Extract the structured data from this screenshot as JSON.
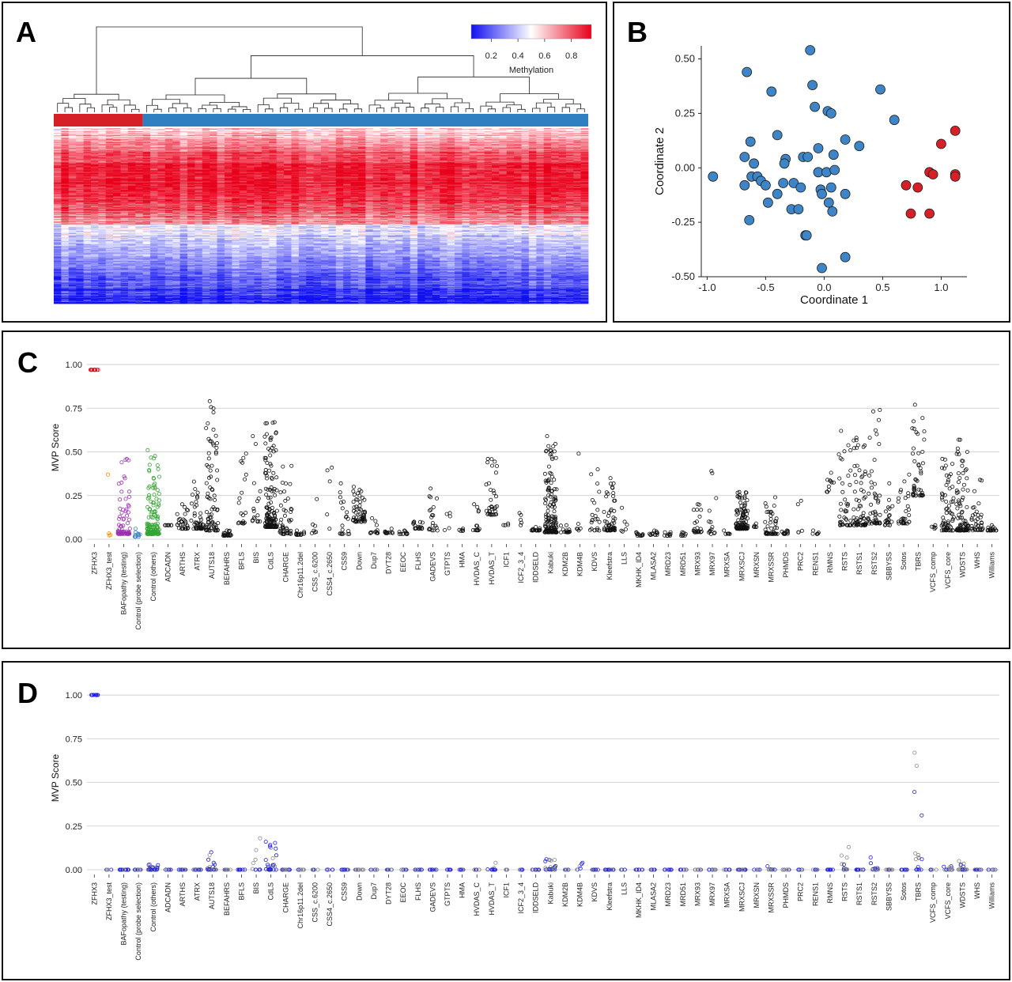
{
  "panels": {
    "a": {
      "letter": "A"
    },
    "b": {
      "letter": "B"
    },
    "c": {
      "letter": "C"
    },
    "d": {
      "letter": "D"
    }
  },
  "chart_data": [
    {
      "panel": "A",
      "type": "heatmap",
      "legend": {
        "title": "Methylation",
        "ticks": [
          0.2,
          0.4,
          0.6,
          0.8
        ],
        "range": [
          0.05,
          0.95
        ],
        "colors": [
          "#1010f0",
          "#ffffff",
          "#e8001a"
        ]
      },
      "groups": [
        {
          "color": "#d62027",
          "count": 12
        },
        {
          "color": "#2f7fc1",
          "count": 60
        }
      ],
      "rows": 220,
      "blocks": [
        {
          "from": 0.0,
          "to": 0.55,
          "mean": 0.72
        },
        {
          "from": 0.55,
          "to": 1.0,
          "mean": 0.18
        }
      ]
    },
    {
      "panel": "B",
      "type": "scatter",
      "xlabel": "Coordinate 1",
      "ylabel": "Coordinate 2",
      "xlim": [
        -1.05,
        1.22
      ],
      "ylim": [
        -0.5,
        0.56
      ],
      "xticks": [
        "-1.0",
        "-0.5",
        "0.0",
        "0.5",
        "1.0"
      ],
      "yticks": [
        "0.50",
        "0.25",
        "0.00",
        "-0.25",
        "-0.50"
      ],
      "series": [
        {
          "color": "#3d85c6",
          "points": [
            [
              -0.12,
              0.54
            ],
            [
              -0.66,
              0.44
            ],
            [
              -0.1,
              0.38
            ],
            [
              -0.45,
              0.35
            ],
            [
              0.48,
              0.36
            ],
            [
              -0.08,
              0.28
            ],
            [
              0.03,
              0.26
            ],
            [
              0.06,
              0.25
            ],
            [
              0.6,
              0.22
            ],
            [
              -0.63,
              0.12
            ],
            [
              -0.4,
              0.15
            ],
            [
              0.18,
              0.13
            ],
            [
              0.3,
              0.1
            ],
            [
              -0.68,
              0.05
            ],
            [
              -0.33,
              0.04
            ],
            [
              -0.18,
              0.05
            ],
            [
              -0.14,
              0.05
            ],
            [
              -0.05,
              0.09
            ],
            [
              0.08,
              0.06
            ],
            [
              -0.6,
              0.02
            ],
            [
              -0.34,
              0.02
            ],
            [
              -0.95,
              -0.04
            ],
            [
              -0.62,
              -0.04
            ],
            [
              -0.57,
              -0.04
            ],
            [
              -0.54,
              -0.06
            ],
            [
              -0.05,
              -0.02
            ],
            [
              0.02,
              -0.02
            ],
            [
              0.09,
              -0.01
            ],
            [
              -0.26,
              -0.07
            ],
            [
              -0.68,
              -0.08
            ],
            [
              -0.5,
              -0.08
            ],
            [
              -0.35,
              -0.07
            ],
            [
              -0.2,
              -0.09
            ],
            [
              -0.03,
              -0.1
            ],
            [
              0.06,
              -0.09
            ],
            [
              -0.4,
              -0.12
            ],
            [
              -0.02,
              -0.12
            ],
            [
              0.18,
              -0.12
            ],
            [
              -0.48,
              -0.16
            ],
            [
              -0.28,
              -0.19
            ],
            [
              -0.22,
              -0.19
            ],
            [
              0.04,
              -0.16
            ],
            [
              0.07,
              -0.2
            ],
            [
              -0.64,
              -0.24
            ],
            [
              -0.16,
              -0.31
            ],
            [
              -0.15,
              -0.31
            ],
            [
              0.18,
              -0.41
            ],
            [
              -0.02,
              -0.46
            ]
          ]
        },
        {
          "color": "#d62027",
          "points": [
            [
              1.12,
              0.17
            ],
            [
              1.0,
              0.11
            ],
            [
              0.9,
              -0.02
            ],
            [
              0.93,
              -0.03
            ],
            [
              1.12,
              -0.03
            ],
            [
              1.12,
              -0.04
            ],
            [
              0.7,
              -0.08
            ],
            [
              0.8,
              -0.09
            ],
            [
              0.74,
              -0.21
            ],
            [
              0.9,
              -0.21
            ]
          ]
        }
      ]
    },
    {
      "panel": "C",
      "type": "scatter",
      "ylabel": "MVP Score",
      "ylim": [
        0,
        1.05
      ],
      "yticks": [
        "0.00",
        "0.25",
        "0.50",
        "0.75",
        "1.00"
      ],
      "categories": [
        "ZFHX3",
        "ZFHX3_test",
        "BAFopathy (testing)",
        "Control (probe selection)",
        "Control (others)",
        "ADCADN",
        "ARTHS",
        "ATRX",
        "AUTS18",
        "BEFAHRS",
        "BFLS",
        "BIS",
        "CdLS",
        "CHARGE",
        "Chr16p11.2del",
        "CSS_c.6200",
        "CSS4_c.2650",
        "CSS9",
        "Down",
        "Dup7",
        "DYT28",
        "EEOC",
        "FLHS",
        "GADEVS",
        "GTPTS",
        "HMA",
        "HVDAS_C",
        "HVDAS_T",
        "ICF1",
        "ICF2_3_4",
        "IDDSELD",
        "Kabuki",
        "KDM2B",
        "KDM4B",
        "KDVS",
        "Kleefstra",
        "LLS",
        "MKHK_ID4",
        "MLASA2",
        "MRD23",
        "MRD51",
        "MRX93",
        "MRX97",
        "MRXSA",
        "MRXSCJ",
        "MRXSN",
        "MRXSSR",
        "PHMDS",
        "PRC2",
        "RENS1",
        "RMNS",
        "RSTS",
        "RSTS1",
        "RSTS2",
        "SBBYSS",
        "Sotos",
        "TBRS",
        "VCFS_comp",
        "VCFS_core",
        "WDSTS",
        "WHS",
        "Williams"
      ],
      "n": [
        10,
        4,
        70,
        12,
        140,
        7,
        30,
        45,
        80,
        22,
        20,
        16,
        150,
        45,
        16,
        7,
        5,
        20,
        55,
        12,
        12,
        12,
        20,
        20,
        5,
        6,
        14,
        35,
        4,
        5,
        18,
        150,
        16,
        6,
        22,
        60,
        6,
        12,
        14,
        10,
        8,
        22,
        14,
        6,
        110,
        6,
        45,
        12,
        5,
        6,
        10,
        45,
        65,
        50,
        20,
        30,
        45,
        5,
        65,
        90,
        35,
        18
      ],
      "base": [
        0.97,
        0.02,
        0.03,
        0.013,
        0.03,
        0.08,
        0.06,
        0.06,
        0.05,
        0.02,
        0.09,
        0.1,
        0.07,
        0.03,
        0.025,
        0.03,
        0.03,
        0.03,
        0.1,
        0.035,
        0.035,
        0.03,
        0.06,
        0.05,
        0.05,
        0.045,
        0.05,
        0.14,
        0.08,
        0.08,
        0.05,
        0.04,
        0.04,
        0.05,
        0.05,
        0.05,
        0.04,
        0.02,
        0.025,
        0.02,
        0.02,
        0.04,
        0.03,
        0.03,
        0.06,
        0.07,
        0.03,
        0.03,
        0.04,
        0.03,
        0.27,
        0.08,
        0.08,
        0.09,
        0.08,
        0.09,
        0.25,
        0.06,
        0.05,
        0.05,
        0.05,
        0.05
      ],
      "max": [
        0.97,
        0.37,
        0.46,
        0.06,
        0.51,
        0.08,
        0.2,
        0.33,
        0.79,
        0.05,
        0.49,
        0.59,
        0.67,
        0.42,
        0.05,
        0.23,
        0.41,
        0.32,
        0.3,
        0.12,
        0.06,
        0.05,
        0.1,
        0.29,
        0.15,
        0.06,
        0.2,
        0.46,
        0.09,
        0.15,
        0.07,
        0.59,
        0.08,
        0.49,
        0.4,
        0.35,
        0.18,
        0.04,
        0.05,
        0.04,
        0.04,
        0.2,
        0.39,
        0.05,
        0.27,
        0.09,
        0.24,
        0.05,
        0.22,
        0.05,
        0.38,
        0.62,
        0.58,
        0.74,
        0.32,
        0.37,
        0.77,
        0.08,
        0.46,
        0.57,
        0.34,
        0.08
      ],
      "colors": {
        "ZFHX3": "#e8001a",
        "ZFHX3_test": "#f08c00",
        "BAFopathy (testing)": "#9b30b0",
        "Control (probe selection)": "#3d85c6",
        "Control (others)": "#33a532",
        "default": "#111111"
      }
    },
    {
      "panel": "D",
      "type": "scatter",
      "ylabel": "MVP Score",
      "ylim": [
        0,
        1.05
      ],
      "yticks": [
        "0.00",
        "0.25",
        "0.50",
        "0.75",
        "1.00"
      ],
      "categories": [
        "ZFHX3",
        "ZFHX3_test",
        "BAFopathy (testing)",
        "Control (probe selection)",
        "Control (others)",
        "ADCADN",
        "ARTHS",
        "ATRX",
        "AUTS18",
        "BEFAHRS",
        "BFLS",
        "BIS",
        "CdLS",
        "CHARGE",
        "Chr16p11.2del",
        "CSS_c.6200",
        "CSS4_c.2650",
        "CSS9",
        "Down",
        "Dup7",
        "DYT28",
        "EEOC",
        "FLHS",
        "GADEVS",
        "GTPTS",
        "HMA",
        "HVDAS_C",
        "HVDAS_T",
        "ICF1",
        "ICF2_3_4",
        "IDDSELD",
        "Kabuki",
        "KDM2B",
        "KDM4B",
        "KDVS",
        "Kleefstra",
        "LLS",
        "MKHK_ID4",
        "MLASA2",
        "MRD23",
        "MRD51",
        "MRX93",
        "MRX97",
        "MRXSA",
        "MRXSCJ",
        "MRXSN",
        "MRXSSR",
        "PHMDS",
        "PRC2",
        "RENS1",
        "RMNS",
        "RSTS",
        "RSTS1",
        "RSTS2",
        "SBBYSS",
        "Sotos",
        "TBRS",
        "VCFS_comp",
        "VCFS_core",
        "WDSTS",
        "WHS",
        "Williams"
      ],
      "n": [
        10,
        4,
        20,
        12,
        30,
        7,
        12,
        14,
        25,
        10,
        10,
        10,
        30,
        14,
        8,
        6,
        5,
        10,
        16,
        8,
        8,
        8,
        10,
        10,
        5,
        6,
        8,
        12,
        4,
        5,
        10,
        25,
        8,
        6,
        10,
        16,
        6,
        8,
        8,
        8,
        8,
        10,
        8,
        6,
        16,
        6,
        12,
        8,
        5,
        6,
        8,
        14,
        16,
        14,
        10,
        10,
        16,
        5,
        14,
        18,
        12,
        10
      ],
      "base": [
        1.0,
        0.0,
        0.0,
        0.0,
        0.0,
        0.0,
        0.0,
        0.0,
        0.0,
        0.0,
        0.0,
        0.0,
        0.0,
        0.0,
        0.0,
        0.0,
        0.0,
        0.0,
        0.0,
        0.0,
        0.0,
        0.0,
        0.0,
        0.0,
        0.0,
        0.0,
        0.0,
        0.0,
        0.0,
        0.0,
        0.0,
        0.0,
        0.0,
        0.0,
        0.0,
        0.0,
        0.0,
        0.0,
        0.0,
        0.0,
        0.0,
        0.0,
        0.0,
        0.0,
        0.0,
        0.0,
        0.0,
        0.0,
        0.0,
        0.0,
        0.0,
        0.0,
        0.0,
        0.0,
        0.0,
        0.0,
        0.0,
        0.0,
        0.0,
        0.0,
        0.0,
        0.0
      ],
      "max": [
        1.0,
        0.0,
        0.0,
        0.0,
        0.03,
        0.0,
        0.0,
        0.0,
        0.1,
        0.0,
        0.0,
        0.18,
        0.16,
        0.0,
        0.0,
        0.0,
        0.0,
        0.0,
        0.0,
        0.0,
        0.0,
        0.0,
        0.0,
        0.0,
        0.0,
        0.0,
        0.0,
        0.04,
        0.0,
        0.0,
        0.0,
        0.06,
        0.0,
        0.04,
        0.0,
        0.0,
        0.0,
        0.0,
        0.0,
        0.0,
        0.0,
        0.0,
        0.0,
        0.0,
        0.0,
        0.0,
        0.02,
        0.0,
        0.0,
        0.0,
        0.0,
        0.13,
        0.0,
        0.07,
        0.0,
        0.0,
        0.67,
        0.0,
        0.02,
        0.05,
        0.0,
        0.0
      ],
      "colors": {
        "ZFHX3": "#1a1ae6",
        "default": "#1a1ae6",
        "alt": "#888888"
      }
    }
  ]
}
